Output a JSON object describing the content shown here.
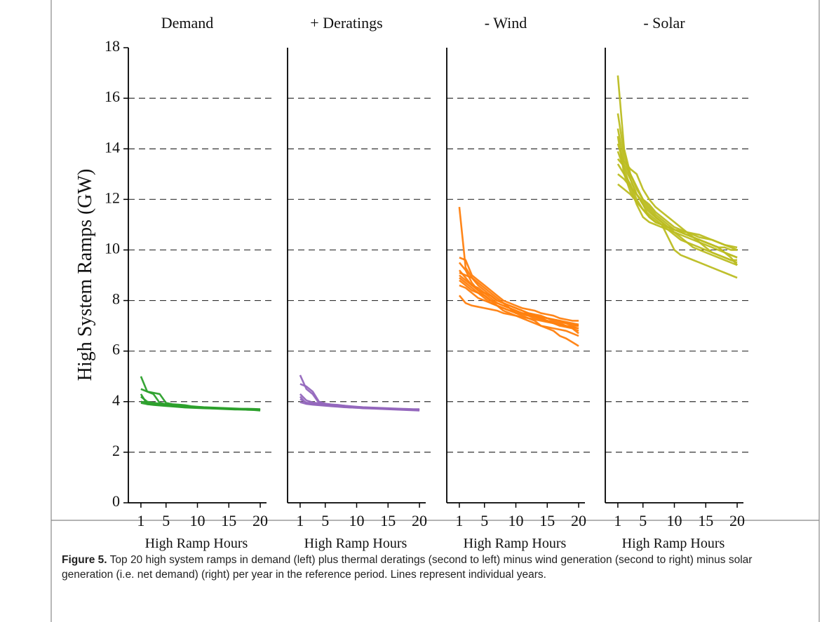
{
  "chart_data": [
    {
      "type": "line",
      "title": "Demand",
      "ylabel": "High System Ramps (GW)",
      "xlabel": "High Ramp Hours",
      "x": [
        1,
        2,
        3,
        4,
        5,
        6,
        7,
        8,
        9,
        10,
        11,
        12,
        13,
        14,
        15,
        16,
        17,
        18,
        19,
        20
      ],
      "xlim": [
        -1,
        21
      ],
      "xticks": [
        1,
        5,
        10,
        15,
        20
      ],
      "ylim": [
        0,
        18
      ],
      "yticks": [
        0,
        2,
        4,
        6,
        8,
        10,
        12,
        14,
        16,
        18
      ],
      "grid": true,
      "color": "#2ca02c",
      "series": [
        {
          "values": [
            5.0,
            4.4,
            4.35,
            4.3,
            3.95,
            3.9,
            3.88,
            3.86,
            3.82,
            3.8,
            3.78,
            3.77,
            3.76,
            3.75,
            3.74,
            3.73,
            3.72,
            3.72,
            3.71,
            3.7
          ]
        },
        {
          "values": [
            4.5,
            4.4,
            4.3,
            3.95,
            3.9,
            3.88,
            3.86,
            3.84,
            3.8,
            3.78,
            3.77,
            3.76,
            3.75,
            3.74,
            3.73,
            3.72,
            3.71,
            3.7,
            3.7,
            3.69
          ]
        },
        {
          "values": [
            4.2,
            4.0,
            3.95,
            3.92,
            3.9,
            3.87,
            3.85,
            3.82,
            3.8,
            3.78,
            3.76,
            3.75,
            3.74,
            3.73,
            3.72,
            3.71,
            3.7,
            3.69,
            3.68,
            3.67
          ]
        },
        {
          "values": [
            4.0,
            3.95,
            3.92,
            3.9,
            3.88,
            3.86,
            3.84,
            3.8,
            3.78,
            3.76,
            3.75,
            3.74,
            3.73,
            3.72,
            3.71,
            3.7,
            3.69,
            3.68,
            3.68,
            3.67
          ]
        },
        {
          "values": [
            4.3,
            3.9,
            3.88,
            3.86,
            3.84,
            3.82,
            3.8,
            3.78,
            3.77,
            3.76,
            3.75,
            3.74,
            3.73,
            3.72,
            3.71,
            3.7,
            3.7,
            3.69,
            3.68,
            3.66
          ]
        },
        {
          "values": [
            3.95,
            3.9,
            3.87,
            3.85,
            3.83,
            3.81,
            3.79,
            3.77,
            3.76,
            3.75,
            3.74,
            3.73,
            3.72,
            3.71,
            3.7,
            3.69,
            3.69,
            3.68,
            3.67,
            3.65
          ]
        }
      ]
    },
    {
      "type": "line",
      "title": "+ Deratings",
      "xlabel": "High Ramp Hours",
      "x": [
        1,
        2,
        3,
        4,
        5,
        6,
        7,
        8,
        9,
        10,
        11,
        12,
        13,
        14,
        15,
        16,
        17,
        18,
        19,
        20
      ],
      "xlim": [
        -1,
        21
      ],
      "xticks": [
        1,
        5,
        10,
        15,
        20
      ],
      "ylim": [
        0,
        18
      ],
      "grid": true,
      "color": "#9467bd",
      "series": [
        {
          "values": [
            5.05,
            4.5,
            4.3,
            3.95,
            3.9,
            3.88,
            3.86,
            3.84,
            3.82,
            3.8,
            3.78,
            3.77,
            3.76,
            3.75,
            3.74,
            3.73,
            3.72,
            3.71,
            3.7,
            3.7
          ]
        },
        {
          "values": [
            4.7,
            4.6,
            4.4,
            4.0,
            3.92,
            3.89,
            3.87,
            3.84,
            3.81,
            3.79,
            3.77,
            3.76,
            3.75,
            3.74,
            3.73,
            3.72,
            3.71,
            3.7,
            3.69,
            3.68
          ]
        },
        {
          "values": [
            4.3,
            4.05,
            3.97,
            3.93,
            3.9,
            3.87,
            3.85,
            3.82,
            3.8,
            3.78,
            3.76,
            3.75,
            3.74,
            3.73,
            3.72,
            3.71,
            3.7,
            3.69,
            3.68,
            3.67
          ]
        },
        {
          "values": [
            4.1,
            3.96,
            3.93,
            3.9,
            3.88,
            3.86,
            3.84,
            3.81,
            3.79,
            3.77,
            3.75,
            3.74,
            3.73,
            3.72,
            3.71,
            3.7,
            3.69,
            3.68,
            3.67,
            3.66
          ]
        },
        {
          "values": [
            4.2,
            3.92,
            3.89,
            3.87,
            3.85,
            3.83,
            3.81,
            3.79,
            3.77,
            3.76,
            3.75,
            3.74,
            3.73,
            3.72,
            3.71,
            3.7,
            3.69,
            3.68,
            3.67,
            3.66
          ]
        },
        {
          "values": [
            3.98,
            3.91,
            3.88,
            3.86,
            3.84,
            3.82,
            3.8,
            3.78,
            3.77,
            3.76,
            3.74,
            3.73,
            3.72,
            3.71,
            3.7,
            3.69,
            3.68,
            3.67,
            3.66,
            3.65
          ]
        }
      ]
    },
    {
      "type": "line",
      "title": "- Wind",
      "xlabel": "High Ramp Hours",
      "x": [
        1,
        2,
        3,
        4,
        5,
        6,
        7,
        8,
        9,
        10,
        11,
        12,
        13,
        14,
        15,
        16,
        17,
        18,
        19,
        20
      ],
      "xlim": [
        -1,
        21
      ],
      "xticks": [
        1,
        5,
        10,
        15,
        20
      ],
      "ylim": [
        0,
        18
      ],
      "grid": true,
      "color": "#ff7f0e",
      "series": [
        {
          "values": [
            11.7,
            9.3,
            8.9,
            8.6,
            8.4,
            8.2,
            8.0,
            7.9,
            7.8,
            7.7,
            7.6,
            7.5,
            7.45,
            7.4,
            7.3,
            7.25,
            7.2,
            7.1,
            7.05,
            7.0
          ]
        },
        {
          "values": [
            9.7,
            9.6,
            9.0,
            8.8,
            8.6,
            8.4,
            8.2,
            8.0,
            7.9,
            7.8,
            7.7,
            7.65,
            7.6,
            7.5,
            7.45,
            7.4,
            7.3,
            7.25,
            7.2,
            7.2
          ]
        },
        {
          "values": [
            9.1,
            9.0,
            8.9,
            8.7,
            8.5,
            8.3,
            8.1,
            7.9,
            7.7,
            7.5,
            7.4,
            7.3,
            7.2,
            7.0,
            6.9,
            6.8,
            6.6,
            6.5,
            6.35,
            6.2
          ]
        },
        {
          "values": [
            9.0,
            8.8,
            8.6,
            8.5,
            8.3,
            8.1,
            7.9,
            7.8,
            7.7,
            7.6,
            7.5,
            7.4,
            7.3,
            7.25,
            7.2,
            7.1,
            7.05,
            7.0,
            6.95,
            6.9
          ]
        },
        {
          "values": [
            8.9,
            8.7,
            8.5,
            8.3,
            8.2,
            8.0,
            7.9,
            7.8,
            7.7,
            7.6,
            7.5,
            7.45,
            7.4,
            7.3,
            7.2,
            7.15,
            7.1,
            7.0,
            6.9,
            6.8
          ]
        },
        {
          "values": [
            8.8,
            8.6,
            8.4,
            8.3,
            8.1,
            7.9,
            7.8,
            7.7,
            7.6,
            7.5,
            7.45,
            7.4,
            7.35,
            7.3,
            7.2,
            7.1,
            7.0,
            6.95,
            6.9,
            6.7
          ]
        },
        {
          "values": [
            8.6,
            8.5,
            8.3,
            8.1,
            8.0,
            7.9,
            7.8,
            7.7,
            7.6,
            7.55,
            7.5,
            7.45,
            7.4,
            7.35,
            7.3,
            7.2,
            7.15,
            7.1,
            7.0,
            7.0
          ]
        },
        {
          "values": [
            8.2,
            7.9,
            7.8,
            7.75,
            7.7,
            7.65,
            7.6,
            7.5,
            7.45,
            7.4,
            7.35,
            7.3,
            7.25,
            7.2,
            7.15,
            7.1,
            7.05,
            7.0,
            6.95,
            6.9
          ]
        },
        {
          "values": [
            9.5,
            9.2,
            8.7,
            8.4,
            8.2,
            8.0,
            7.8,
            7.6,
            7.5,
            7.4,
            7.3,
            7.2,
            7.1,
            7.0,
            6.95,
            6.9,
            6.85,
            6.8,
            6.7,
            6.6
          ]
        },
        {
          "values": [
            9.2,
            8.9,
            8.6,
            8.4,
            8.3,
            8.2,
            8.0,
            7.9,
            7.8,
            7.7,
            7.6,
            7.5,
            7.4,
            7.35,
            7.3,
            7.25,
            7.2,
            7.15,
            7.1,
            7.05
          ]
        }
      ]
    },
    {
      "type": "line",
      "title": "- Solar",
      "xlabel": "High Ramp Hours",
      "x": [
        1,
        2,
        3,
        4,
        5,
        6,
        7,
        8,
        9,
        10,
        11,
        12,
        13,
        14,
        15,
        16,
        17,
        18,
        19,
        20
      ],
      "xlim": [
        -1,
        21
      ],
      "xticks": [
        1,
        5,
        10,
        15,
        20
      ],
      "ylim": [
        0,
        18
      ],
      "grid": true,
      "color": "#bcbd22",
      "series": [
        {
          "values": [
            16.9,
            14.0,
            13.0,
            12.5,
            12.0,
            11.7,
            11.4,
            11.2,
            11.0,
            10.8,
            10.7,
            10.6,
            10.5,
            10.4,
            10.3,
            10.2,
            10.1,
            10.1,
            10.0,
            10.0
          ]
        },
        {
          "values": [
            15.4,
            13.8,
            12.8,
            12.2,
            11.8,
            11.5,
            11.3,
            11.1,
            10.9,
            10.8,
            10.7,
            10.6,
            10.5,
            10.4,
            10.3,
            10.2,
            10.1,
            9.9,
            9.8,
            9.7
          ]
        },
        {
          "values": [
            14.8,
            13.5,
            13.2,
            13.0,
            12.4,
            12.0,
            11.7,
            11.5,
            11.3,
            11.1,
            10.9,
            10.7,
            10.5,
            10.3,
            10.1,
            9.9,
            9.8,
            9.7,
            9.6,
            9.5
          ]
        },
        {
          "values": [
            14.2,
            13.4,
            13.0,
            12.4,
            12.0,
            11.8,
            11.5,
            11.3,
            11.1,
            10.9,
            10.8,
            10.7,
            10.6,
            10.5,
            10.45,
            10.4,
            10.3,
            10.2,
            10.15,
            10.1
          ]
        },
        {
          "values": [
            13.6,
            13.3,
            12.8,
            12.2,
            11.8,
            11.3,
            11.1,
            11.0,
            10.9,
            10.8,
            10.75,
            10.7,
            10.65,
            10.6,
            10.5,
            10.4,
            10.3,
            10.2,
            10.1,
            10.0
          ]
        },
        {
          "values": [
            13.4,
            13.0,
            12.6,
            12.0,
            11.6,
            11.3,
            11.1,
            11.0,
            10.5,
            10.0,
            9.8,
            9.7,
            9.6,
            9.5,
            9.4,
            9.3,
            9.2,
            9.1,
            9.0,
            8.9
          ]
        },
        {
          "values": [
            12.6,
            12.4,
            12.2,
            11.9,
            11.6,
            11.4,
            11.2,
            11.0,
            10.9,
            10.8,
            10.7,
            10.6,
            10.5,
            10.4,
            10.3,
            10.2,
            10.1,
            9.9,
            9.7,
            9.4
          ]
        },
        {
          "values": [
            14.5,
            13.0,
            12.3,
            11.9,
            11.6,
            11.3,
            11.1,
            11.0,
            10.8,
            10.6,
            10.4,
            10.3,
            10.2,
            10.1,
            10.0,
            9.9,
            9.8,
            9.7,
            9.6,
            9.6
          ]
        },
        {
          "values": [
            13.9,
            13.2,
            12.5,
            11.8,
            11.3,
            11.1,
            11.0,
            10.9,
            10.8,
            10.7,
            10.6,
            10.5,
            10.4,
            10.3,
            10.2,
            10.1,
            10.0,
            9.9,
            9.8,
            9.7
          ]
        },
        {
          "values": [
            13.0,
            12.8,
            12.5,
            12.2,
            11.9,
            11.6,
            11.3,
            11.1,
            10.9,
            10.7,
            10.5,
            10.3,
            10.1,
            10.0,
            9.9,
            9.8,
            9.7,
            9.6,
            9.5,
            9.4
          ]
        }
      ]
    }
  ],
  "caption": {
    "label": "Figure 5.",
    "text": "Top 20 high system ramps in demand (left) plus thermal deratings (second to left) minus wind generation (second to right) minus solar generation (i.e. net demand) (right) per year in the reference period. Lines represent individual years."
  }
}
